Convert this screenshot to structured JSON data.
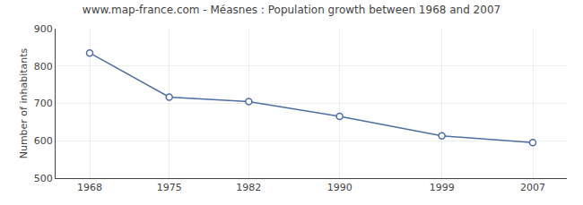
{
  "chart_data": {
    "type": "line",
    "title": "www.map-france.com - Méasnes : Population growth between 1968 and 2007",
    "ylabel": "Number of inhabitants",
    "x": [
      1968,
      1975,
      1982,
      1990,
      1999,
      2007
    ],
    "values": [
      835,
      717,
      705,
      665,
      613,
      595
    ],
    "color": "#4d6fa3",
    "marker": "o",
    "xlim": [
      1965,
      2010
    ],
    "xticks": [
      1968,
      1975,
      1982,
      1990,
      1999,
      2007
    ],
    "ylim": [
      500,
      900
    ],
    "yticks": [
      500,
      600,
      700,
      800,
      900
    ],
    "grid": true
  }
}
